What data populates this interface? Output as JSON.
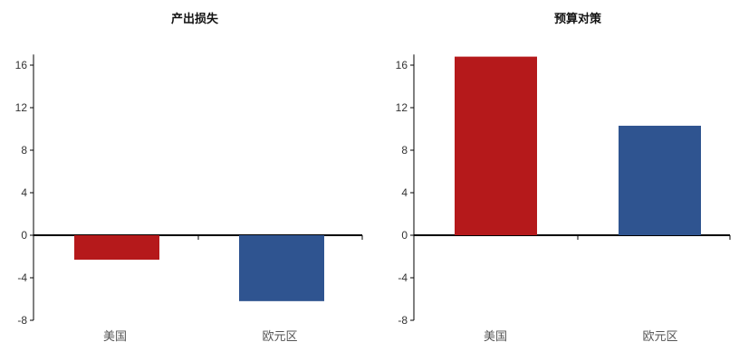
{
  "chart_data": [
    {
      "type": "bar",
      "title": "产出损失",
      "xlabel": "",
      "ylabel": "",
      "categories": [
        "美国",
        "欧元区"
      ],
      "values": [
        -2.3,
        -6.2
      ],
      "bar_colors": [
        "#b5191b",
        "#2f5490"
      ],
      "ylim": [
        -8,
        17
      ],
      "yticks": [
        16,
        12,
        8,
        4,
        0,
        -4,
        -8
      ],
      "grid": false,
      "legend": "none"
    },
    {
      "type": "bar",
      "title": "预算对策",
      "xlabel": "",
      "ylabel": "",
      "categories": [
        "美国",
        "欧元区"
      ],
      "values": [
        16.8,
        10.3
      ],
      "bar_colors": [
        "#b5191b",
        "#2f5490"
      ],
      "ylim": [
        -8,
        17
      ],
      "yticks": [
        16,
        12,
        8,
        4,
        0,
        -4,
        -8
      ],
      "grid": false,
      "legend": "none"
    }
  ]
}
